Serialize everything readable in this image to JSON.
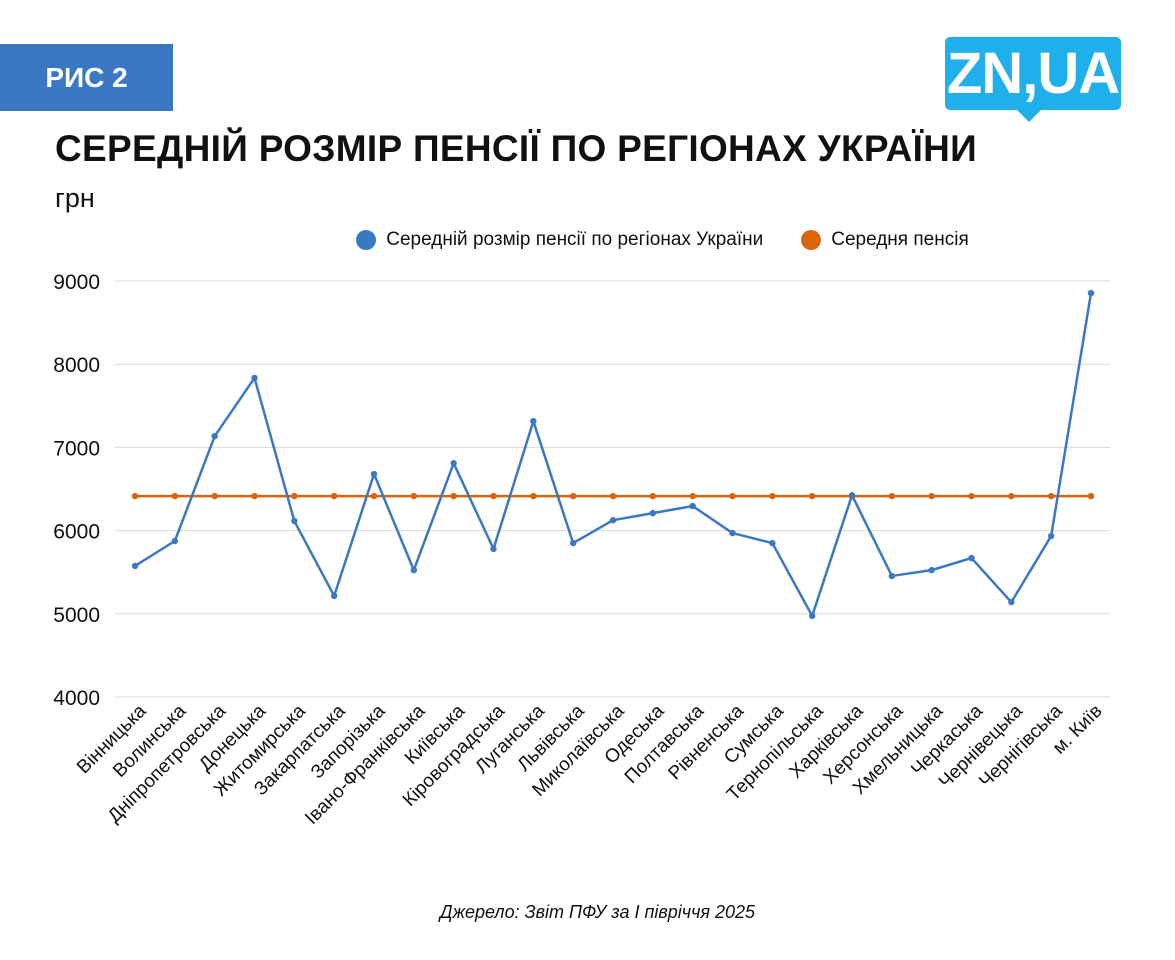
{
  "badge": "РИС 2",
  "logo": "ZN,UA",
  "source": "Джерело: Звіт ПФУ за І півріччя 2025",
  "chart_data": {
    "type": "line",
    "title": "СЕРЕДНІЙ РОЗМІР ПЕНСІЇ ПО РЕГІОНАХ УКРАЇНИ",
    "ylabel": "грн",
    "xlabel": "",
    "ylim": [
      4000,
      9000
    ],
    "yticks": [
      4000,
      5000,
      6000,
      7000,
      8000,
      9000
    ],
    "grid": true,
    "legend": "top",
    "categories": [
      "Вінницька",
      "Волинська",
      "Дніпропетровська",
      "Донецька",
      "Житомирська",
      "Закарпатська",
      "Запорізька",
      "Івано-Франківська",
      "Київська",
      "Кіровоградська",
      "Луганська",
      "Львівська",
      "Миколаївська",
      "Одеська",
      "Полтавська",
      "Рівненська",
      "Сумська",
      "Тернопільська",
      "Харківська",
      "Херсонська",
      "Хмельницька",
      "Черкаська",
      "Чернівецька",
      "Чернігівська",
      "м. Київ"
    ],
    "series": [
      {
        "name": "Середній розмір пенсії по регіонах України",
        "color": "#3b78c4",
        "values": [
          5575,
          5875,
          7135,
          7835,
          6115,
          5215,
          6680,
          5525,
          6810,
          5780,
          7315,
          5850,
          6125,
          6210,
          6295,
          5970,
          5850,
          4975,
          6425,
          5455,
          5525,
          5670,
          5140,
          5935,
          8855
        ]
      },
      {
        "name": "Середня пенсія",
        "color": "#d9650a",
        "values": [
          6415,
          6415,
          6415,
          6415,
          6415,
          6415,
          6415,
          6415,
          6415,
          6415,
          6415,
          6415,
          6415,
          6415,
          6415,
          6415,
          6415,
          6415,
          6415,
          6415,
          6415,
          6415,
          6415,
          6415,
          6415
        ]
      }
    ]
  }
}
